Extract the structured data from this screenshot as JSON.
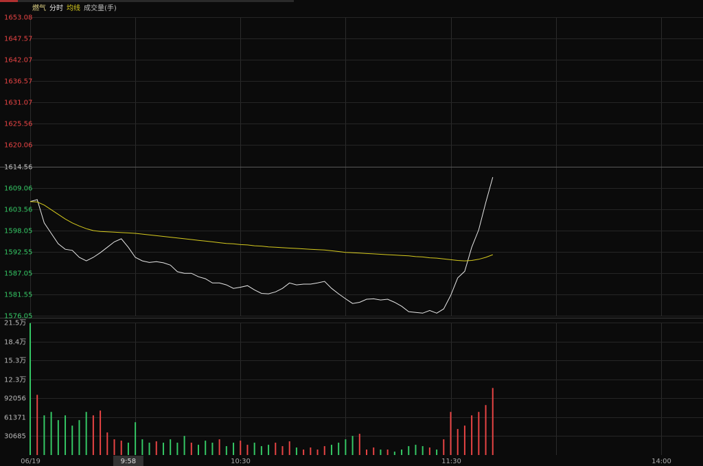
{
  "header": {
    "title": "燃气",
    "volume_title": "成交量(手)"
  },
  "chart_data": [
    {
      "type": "line",
      "x": [
        "9:30",
        "9:32",
        "9:34",
        "9:36",
        "9:38",
        "9:40",
        "9:42",
        "9:44",
        "9:46",
        "9:48",
        "9:50",
        "9:52",
        "9:54",
        "9:56",
        "9:58",
        "10:00",
        "10:02",
        "10:04",
        "10:06",
        "10:08",
        "10:10",
        "10:12",
        "10:14",
        "10:16",
        "10:18",
        "10:20",
        "10:22",
        "10:24",
        "10:26",
        "10:28",
        "10:30",
        "10:32",
        "10:34",
        "10:36",
        "10:38",
        "10:40",
        "10:42",
        "10:44",
        "10:46",
        "10:48",
        "10:50",
        "10:52",
        "10:54",
        "10:56",
        "10:58",
        "11:00",
        "11:02",
        "11:04",
        "11:06",
        "11:08",
        "11:10",
        "11:12",
        "11:14",
        "11:16",
        "11:18",
        "11:20",
        "11:22",
        "11:24",
        "11:26",
        "11:28",
        "11:30",
        "13:02",
        "13:04",
        "13:06",
        "13:08",
        "13:10",
        "13:12"
      ],
      "series": [
        {
          "name": "分时",
          "color": "#e8e8e8",
          "values": [
            1605.5,
            1606.0,
            1600.0,
            1597.3,
            1594.6,
            1593.2,
            1592.9,
            1591.1,
            1590.2,
            1591.1,
            1592.3,
            1593.7,
            1595.1,
            1595.9,
            1593.7,
            1591.1,
            1590.2,
            1589.8,
            1590.0,
            1589.7,
            1589.1,
            1587.4,
            1587.0,
            1587.0,
            1586.1,
            1585.6,
            1584.5,
            1584.5,
            1584.0,
            1583.1,
            1583.4,
            1583.8,
            1582.7,
            1581.8,
            1581.7,
            1582.2,
            1583.1,
            1584.5,
            1584.0,
            1584.2,
            1584.2,
            1584.5,
            1584.9,
            1583.1,
            1581.7,
            1580.4,
            1579.2,
            1579.5,
            1580.3,
            1580.4,
            1580.1,
            1580.3,
            1579.5,
            1578.5,
            1577.1,
            1576.9,
            1576.7,
            1577.4,
            1576.7,
            1577.8,
            1581.3,
            1585.8,
            1587.5,
            1593.7,
            1598.2,
            1605.2,
            1611.8
          ]
        },
        {
          "name": "均线",
          "color": "#d8cc1e",
          "values": [
            1605.5,
            1605.4,
            1604.6,
            1603.4,
            1602.2,
            1601.0,
            1600.0,
            1599.2,
            1598.5,
            1598.0,
            1597.8,
            1597.7,
            1597.6,
            1597.5,
            1597.4,
            1597.3,
            1597.1,
            1596.9,
            1596.7,
            1596.5,
            1596.3,
            1596.1,
            1595.9,
            1595.7,
            1595.5,
            1595.3,
            1595.1,
            1594.9,
            1594.7,
            1594.6,
            1594.4,
            1594.3,
            1594.1,
            1594.0,
            1593.8,
            1593.7,
            1593.6,
            1593.5,
            1593.4,
            1593.3,
            1593.2,
            1593.1,
            1593.0,
            1592.8,
            1592.6,
            1592.4,
            1592.3,
            1592.2,
            1592.1,
            1592.0,
            1591.9,
            1591.8,
            1591.7,
            1591.6,
            1591.5,
            1591.3,
            1591.2,
            1591.0,
            1590.9,
            1590.7,
            1590.5,
            1590.3,
            1590.2,
            1590.3,
            1590.6,
            1591.1,
            1591.8
          ]
        }
      ],
      "ylim": [
        1576.05,
        1653.08
      ],
      "yticks": [
        1653.08,
        1647.57,
        1642.07,
        1636.57,
        1631.07,
        1625.56,
        1620.06,
        1614.56,
        1609.06,
        1603.56,
        1598.05,
        1592.55,
        1587.05,
        1581.55,
        1576.05
      ],
      "prev_close": 1614.56,
      "up_color": "#e84444",
      "down_color": "#35c865",
      "flat_color": "#cccccc",
      "xlim": [
        "9:30",
        "14:12"
      ],
      "xticks": [
        {
          "value": "9:30",
          "label": "06/19"
        },
        {
          "value": "10:00",
          "label": null
        },
        "10:30",
        {
          "value": "11:00",
          "label": null
        },
        "11:30",
        {
          "value": "13:30",
          "label": null
        },
        "14:00"
      ],
      "cursor_x": "9:58",
      "grid": true
    },
    {
      "type": "bar",
      "values": [
        214000,
        97600,
        64300,
        69900,
        56600,
        64300,
        47700,
        56600,
        69900,
        64300,
        72100,
        36600,
        25500,
        23300,
        20000,
        53200,
        25500,
        20000,
        22200,
        20000,
        25500,
        20000,
        31000,
        20000,
        16600,
        23300,
        20000,
        25500,
        14400,
        20000,
        23300,
        16600,
        20000,
        14400,
        16600,
        20000,
        14400,
        22200,
        12200,
        8900,
        12200,
        8900,
        14400,
        16600,
        20000,
        25500,
        31000,
        34400,
        8900,
        12200,
        8900,
        8900,
        5500,
        8900,
        14400,
        16600,
        14400,
        12200,
        8900,
        25500,
        69900,
        42200,
        47700,
        64300,
        69900,
        81000,
        108700
      ],
      "ylim": [
        0,
        214797
      ],
      "yticks": [
        {
          "value": 214797,
          "label": "21.5万"
        },
        {
          "value": 184112,
          "label": "18.4万"
        },
        {
          "value": 153427,
          "label": "15.3万"
        },
        {
          "value": 122741,
          "label": "12.3万"
        },
        92056,
        61371,
        30685
      ],
      "grid": true
    }
  ]
}
